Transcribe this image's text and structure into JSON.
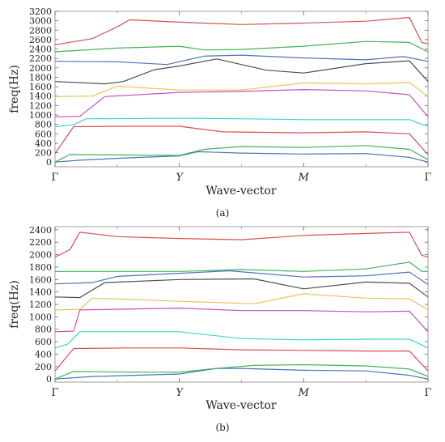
{
  "chart_data": [
    {
      "type": "line",
      "caption": "(a)",
      "ylabel": "freq(Hz)",
      "xlabel": "Wave-vector",
      "x_ticks": [
        "Γ",
        "Y",
        "M",
        "Γ"
      ],
      "x_tick_positions": [
        0,
        1,
        2,
        3
      ],
      "xlim": [
        0,
        3
      ],
      "ylim": [
        -100,
        3200
      ],
      "y_ticks": [
        0,
        200,
        400,
        600,
        800,
        1000,
        1200,
        1400,
        1600,
        1800,
        2000,
        2200,
        2400,
        2600,
        2800,
        3000,
        3200
      ],
      "grid": false,
      "series": [
        {
          "color": "#4f72b8",
          "points": [
            [
              0,
              0
            ],
            [
              0.2,
              40
            ],
            [
              0.6,
              90
            ],
            [
              1.0,
              130
            ],
            [
              1.15,
              220
            ],
            [
              1.5,
              190
            ],
            [
              2.0,
              170
            ],
            [
              2.5,
              180
            ],
            [
              2.85,
              100
            ],
            [
              3,
              0
            ]
          ]
        },
        {
          "color": "#3fb35c",
          "points": [
            [
              0,
              0
            ],
            [
              0.12,
              160
            ],
            [
              0.6,
              150
            ],
            [
              1.0,
              140
            ],
            [
              1.2,
              270
            ],
            [
              1.5,
              330
            ],
            [
              2.0,
              310
            ],
            [
              2.5,
              350
            ],
            [
              2.85,
              270
            ],
            [
              3,
              50
            ]
          ]
        },
        {
          "color": "#d6504f",
          "points": [
            [
              0,
              180
            ],
            [
              0.15,
              750
            ],
            [
              0.6,
              760
            ],
            [
              1.0,
              760
            ],
            [
              1.35,
              640
            ],
            [
              2.0,
              620
            ],
            [
              2.5,
              640
            ],
            [
              2.85,
              600
            ],
            [
              3,
              160
            ]
          ]
        },
        {
          "color": "#3fd4cf",
          "points": [
            [
              0,
              750
            ],
            [
              0.15,
              790
            ],
            [
              0.25,
              920
            ],
            [
              1.0,
              930
            ],
            [
              1.5,
              920
            ],
            [
              2.0,
              900
            ],
            [
              2.5,
              900
            ],
            [
              2.85,
              900
            ],
            [
              3,
              750
            ]
          ]
        },
        {
          "color": "#c550c2",
          "points": [
            [
              0,
              960
            ],
            [
              0.2,
              970
            ],
            [
              0.4,
              1390
            ],
            [
              1.0,
              1480
            ],
            [
              1.5,
              1500
            ],
            [
              2.0,
              1540
            ],
            [
              2.5,
              1510
            ],
            [
              2.85,
              1430
            ],
            [
              3,
              960
            ]
          ]
        },
        {
          "color": "#e7c45b",
          "points": [
            [
              0,
              1390
            ],
            [
              0.3,
              1400
            ],
            [
              0.5,
              1610
            ],
            [
              1.0,
              1530
            ],
            [
              1.5,
              1530
            ],
            [
              2.0,
              1680
            ],
            [
              2.5,
              1660
            ],
            [
              2.85,
              1690
            ],
            [
              3,
              1390
            ]
          ]
        },
        {
          "color": "#4f4f4f",
          "points": [
            [
              0,
              1710
            ],
            [
              0.4,
              1660
            ],
            [
              0.55,
              1710
            ],
            [
              0.8,
              1960
            ],
            [
              1.0,
              2040
            ],
            [
              1.3,
              2190
            ],
            [
              1.7,
              1950
            ],
            [
              2.0,
              1890
            ],
            [
              2.5,
              2090
            ],
            [
              2.85,
              2150
            ],
            [
              3,
              1710
            ]
          ]
        },
        {
          "color": "#4f72b8",
          "points": [
            [
              0,
              2140
            ],
            [
              0.5,
              2130
            ],
            [
              0.9,
              2070
            ],
            [
              1.2,
              2250
            ],
            [
              1.5,
              2270
            ],
            [
              2.0,
              2210
            ],
            [
              2.5,
              2170
            ],
            [
              2.8,
              2240
            ],
            [
              3,
              2140
            ]
          ]
        },
        {
          "color": "#3fb35c",
          "points": [
            [
              0,
              2340
            ],
            [
              0.5,
              2420
            ],
            [
              1.0,
              2460
            ],
            [
              1.2,
              2380
            ],
            [
              1.5,
              2390
            ],
            [
              2.0,
              2460
            ],
            [
              2.5,
              2560
            ],
            [
              2.85,
              2540
            ],
            [
              3,
              2340
            ]
          ]
        },
        {
          "color": "#d6504f",
          "points": [
            [
              0,
              2490
            ],
            [
              0.3,
              2620
            ],
            [
              0.5,
              2870
            ],
            [
              0.6,
              3020
            ],
            [
              1.0,
              2970
            ],
            [
              1.5,
              2920
            ],
            [
              2.0,
              2950
            ],
            [
              2.5,
              2990
            ],
            [
              2.85,
              3070
            ],
            [
              2.95,
              2540
            ],
            [
              3,
              2510
            ]
          ]
        }
      ]
    },
    {
      "type": "line",
      "caption": "(b)",
      "ylabel": "freq(Hz)",
      "xlabel": "Wave-vector",
      "x_ticks": [
        "Γ",
        "Y",
        "M",
        "Γ"
      ],
      "x_tick_positions": [
        0,
        1,
        2,
        3
      ],
      "xlim": [
        0,
        3
      ],
      "ylim": [
        -50,
        2450
      ],
      "y_ticks": [
        0,
        200,
        400,
        600,
        800,
        1000,
        1200,
        1400,
        1600,
        1800,
        2000,
        2200,
        2400
      ],
      "grid": false,
      "series": [
        {
          "color": "#4f72b8",
          "points": [
            [
              0,
              0
            ],
            [
              0.3,
              40
            ],
            [
              1.0,
              80
            ],
            [
              1.3,
              170
            ],
            [
              1.5,
              170
            ],
            [
              2.0,
              140
            ],
            [
              2.5,
              130
            ],
            [
              2.85,
              60
            ],
            [
              3,
              0
            ]
          ]
        },
        {
          "color": "#3fb35c",
          "points": [
            [
              0,
              0
            ],
            [
              0.15,
              120
            ],
            [
              0.6,
              110
            ],
            [
              1.0,
              110
            ],
            [
              1.3,
              170
            ],
            [
              1.6,
              220
            ],
            [
              2.0,
              230
            ],
            [
              2.5,
              210
            ],
            [
              2.85,
              160
            ],
            [
              3,
              40
            ]
          ]
        },
        {
          "color": "#d6504f",
          "points": [
            [
              0,
              130
            ],
            [
              0.15,
              490
            ],
            [
              0.6,
              500
            ],
            [
              1.0,
              500
            ],
            [
              1.5,
              470
            ],
            [
              2.0,
              460
            ],
            [
              2.5,
              450
            ],
            [
              2.85,
              450
            ],
            [
              3,
              130
            ]
          ]
        },
        {
          "color": "#3fd4cf",
          "points": [
            [
              0,
              500
            ],
            [
              0.1,
              560
            ],
            [
              0.2,
              760
            ],
            [
              1.0,
              760
            ],
            [
              1.5,
              650
            ],
            [
              2.0,
              630
            ],
            [
              2.5,
              640
            ],
            [
              2.85,
              640
            ],
            [
              3,
              500
            ]
          ]
        },
        {
          "color": "#c550c2",
          "points": [
            [
              0,
              760
            ],
            [
              0.15,
              770
            ],
            [
              0.2,
              1110
            ],
            [
              1.0,
              1140
            ],
            [
              1.5,
              1100
            ],
            [
              2.0,
              1100
            ],
            [
              2.5,
              1080
            ],
            [
              2.85,
              1090
            ],
            [
              3,
              760
            ]
          ]
        },
        {
          "color": "#e7c45b",
          "points": [
            [
              0,
              1110
            ],
            [
              0.2,
              1120
            ],
            [
              0.3,
              1300
            ],
            [
              1.0,
              1250
            ],
            [
              1.6,
              1210
            ],
            [
              2.0,
              1370
            ],
            [
              2.5,
              1300
            ],
            [
              2.85,
              1290
            ],
            [
              3,
              1110
            ]
          ]
        },
        {
          "color": "#4f4f4f",
          "points": [
            [
              0,
              1320
            ],
            [
              0.2,
              1310
            ],
            [
              0.4,
              1550
            ],
            [
              1.0,
              1600
            ],
            [
              1.6,
              1610
            ],
            [
              2.0,
              1450
            ],
            [
              2.5,
              1560
            ],
            [
              2.85,
              1540
            ],
            [
              3,
              1320
            ]
          ]
        },
        {
          "color": "#4f72b8",
          "points": [
            [
              0,
              1530
            ],
            [
              0.3,
              1550
            ],
            [
              0.5,
              1650
            ],
            [
              1.0,
              1700
            ],
            [
              1.4,
              1740
            ],
            [
              2.0,
              1640
            ],
            [
              2.5,
              1660
            ],
            [
              2.85,
              1720
            ],
            [
              3,
              1520
            ]
          ]
        },
        {
          "color": "#3fb35c",
          "points": [
            [
              0,
              1730
            ],
            [
              0.5,
              1730
            ],
            [
              1.0,
              1730
            ],
            [
              1.5,
              1760
            ],
            [
              2.0,
              1730
            ],
            [
              2.5,
              1770
            ],
            [
              2.85,
              1880
            ],
            [
              2.95,
              1730
            ],
            [
              3,
              1730
            ]
          ]
        },
        {
          "color": "#d6504f",
          "points": [
            [
              0,
              1960
            ],
            [
              0.12,
              2080
            ],
            [
              0.2,
              2360
            ],
            [
              0.5,
              2290
            ],
            [
              1.0,
              2260
            ],
            [
              1.5,
              2240
            ],
            [
              2.0,
              2310
            ],
            [
              2.5,
              2340
            ],
            [
              2.85,
              2360
            ],
            [
              2.95,
              1990
            ],
            [
              3,
              1960
            ]
          ]
        }
      ]
    }
  ]
}
